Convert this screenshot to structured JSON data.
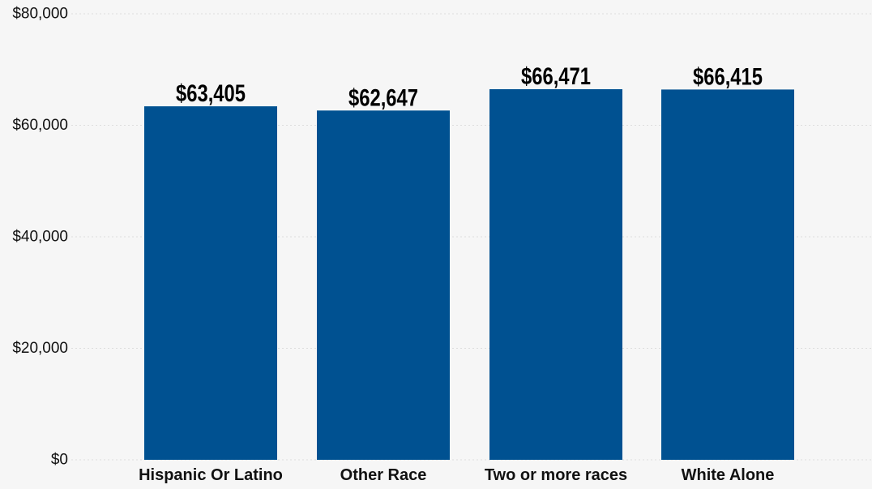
{
  "colors": {
    "background": "#f6f6f6",
    "bar": "#005191",
    "grid": "#dddddd"
  },
  "chart_data": {
    "type": "bar",
    "categories": [
      "Hispanic Or Latino",
      "Other Race",
      "Two or more races",
      "White Alone"
    ],
    "values": [
      63405,
      62647,
      66471,
      66415
    ],
    "data_labels": [
      "$63,405",
      "$62,647",
      "$66,471",
      "$66,415"
    ],
    "title": "",
    "xlabel": "",
    "ylabel": "",
    "ylim": [
      0,
      80000
    ],
    "yticks": [
      0,
      20000,
      40000,
      60000,
      80000
    ],
    "ytick_labels": [
      "$0",
      "$20,000",
      "$40,000",
      "$60,000",
      "$80,000"
    ],
    "grid": true,
    "legend": "none"
  }
}
